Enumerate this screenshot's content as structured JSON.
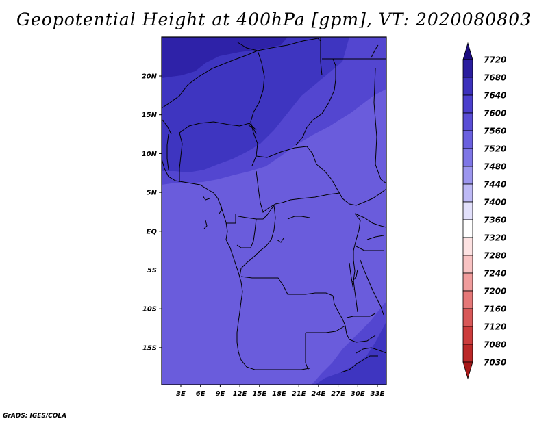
{
  "title": "Geopotential Height at 400hPa [gpm], VT: 2020080803",
  "credit": "GrADS: IGES/COLA",
  "map": {
    "lat_labels": [
      "20N",
      "15N",
      "10N",
      "5N",
      "EQ",
      "5S",
      "10S",
      "15S"
    ],
    "lon_labels": [
      "3E",
      "6E",
      "9E",
      "12E",
      "15E",
      "18E",
      "21E",
      "24E",
      "27E",
      "30E",
      "33E"
    ],
    "field_colors": {
      "7680": "#2e22a8",
      "7640": "#3e35c0",
      "7600": "#5346d0",
      "7560": "#6a5cdc"
    }
  },
  "colorbar": {
    "levels": [
      "7720",
      "7680",
      "7640",
      "7600",
      "7560",
      "7520",
      "7480",
      "7440",
      "7400",
      "7360",
      "7320",
      "7280",
      "7240",
      "7200",
      "7160",
      "7120",
      "7080",
      "7030"
    ],
    "colors": [
      "#1c0d80",
      "#2a1d9e",
      "#3c31bc",
      "#4b3fcd",
      "#5a4ed6",
      "#6a60df",
      "#7e76e6",
      "#9c96ee",
      "#bdb9f5",
      "#e2e0fb",
      "#ffffff",
      "#fde2e2",
      "#f8c2c2",
      "#f09c9c",
      "#e57878",
      "#d85858",
      "#cc3c3c",
      "#bb2828",
      "#a81818"
    ]
  }
}
